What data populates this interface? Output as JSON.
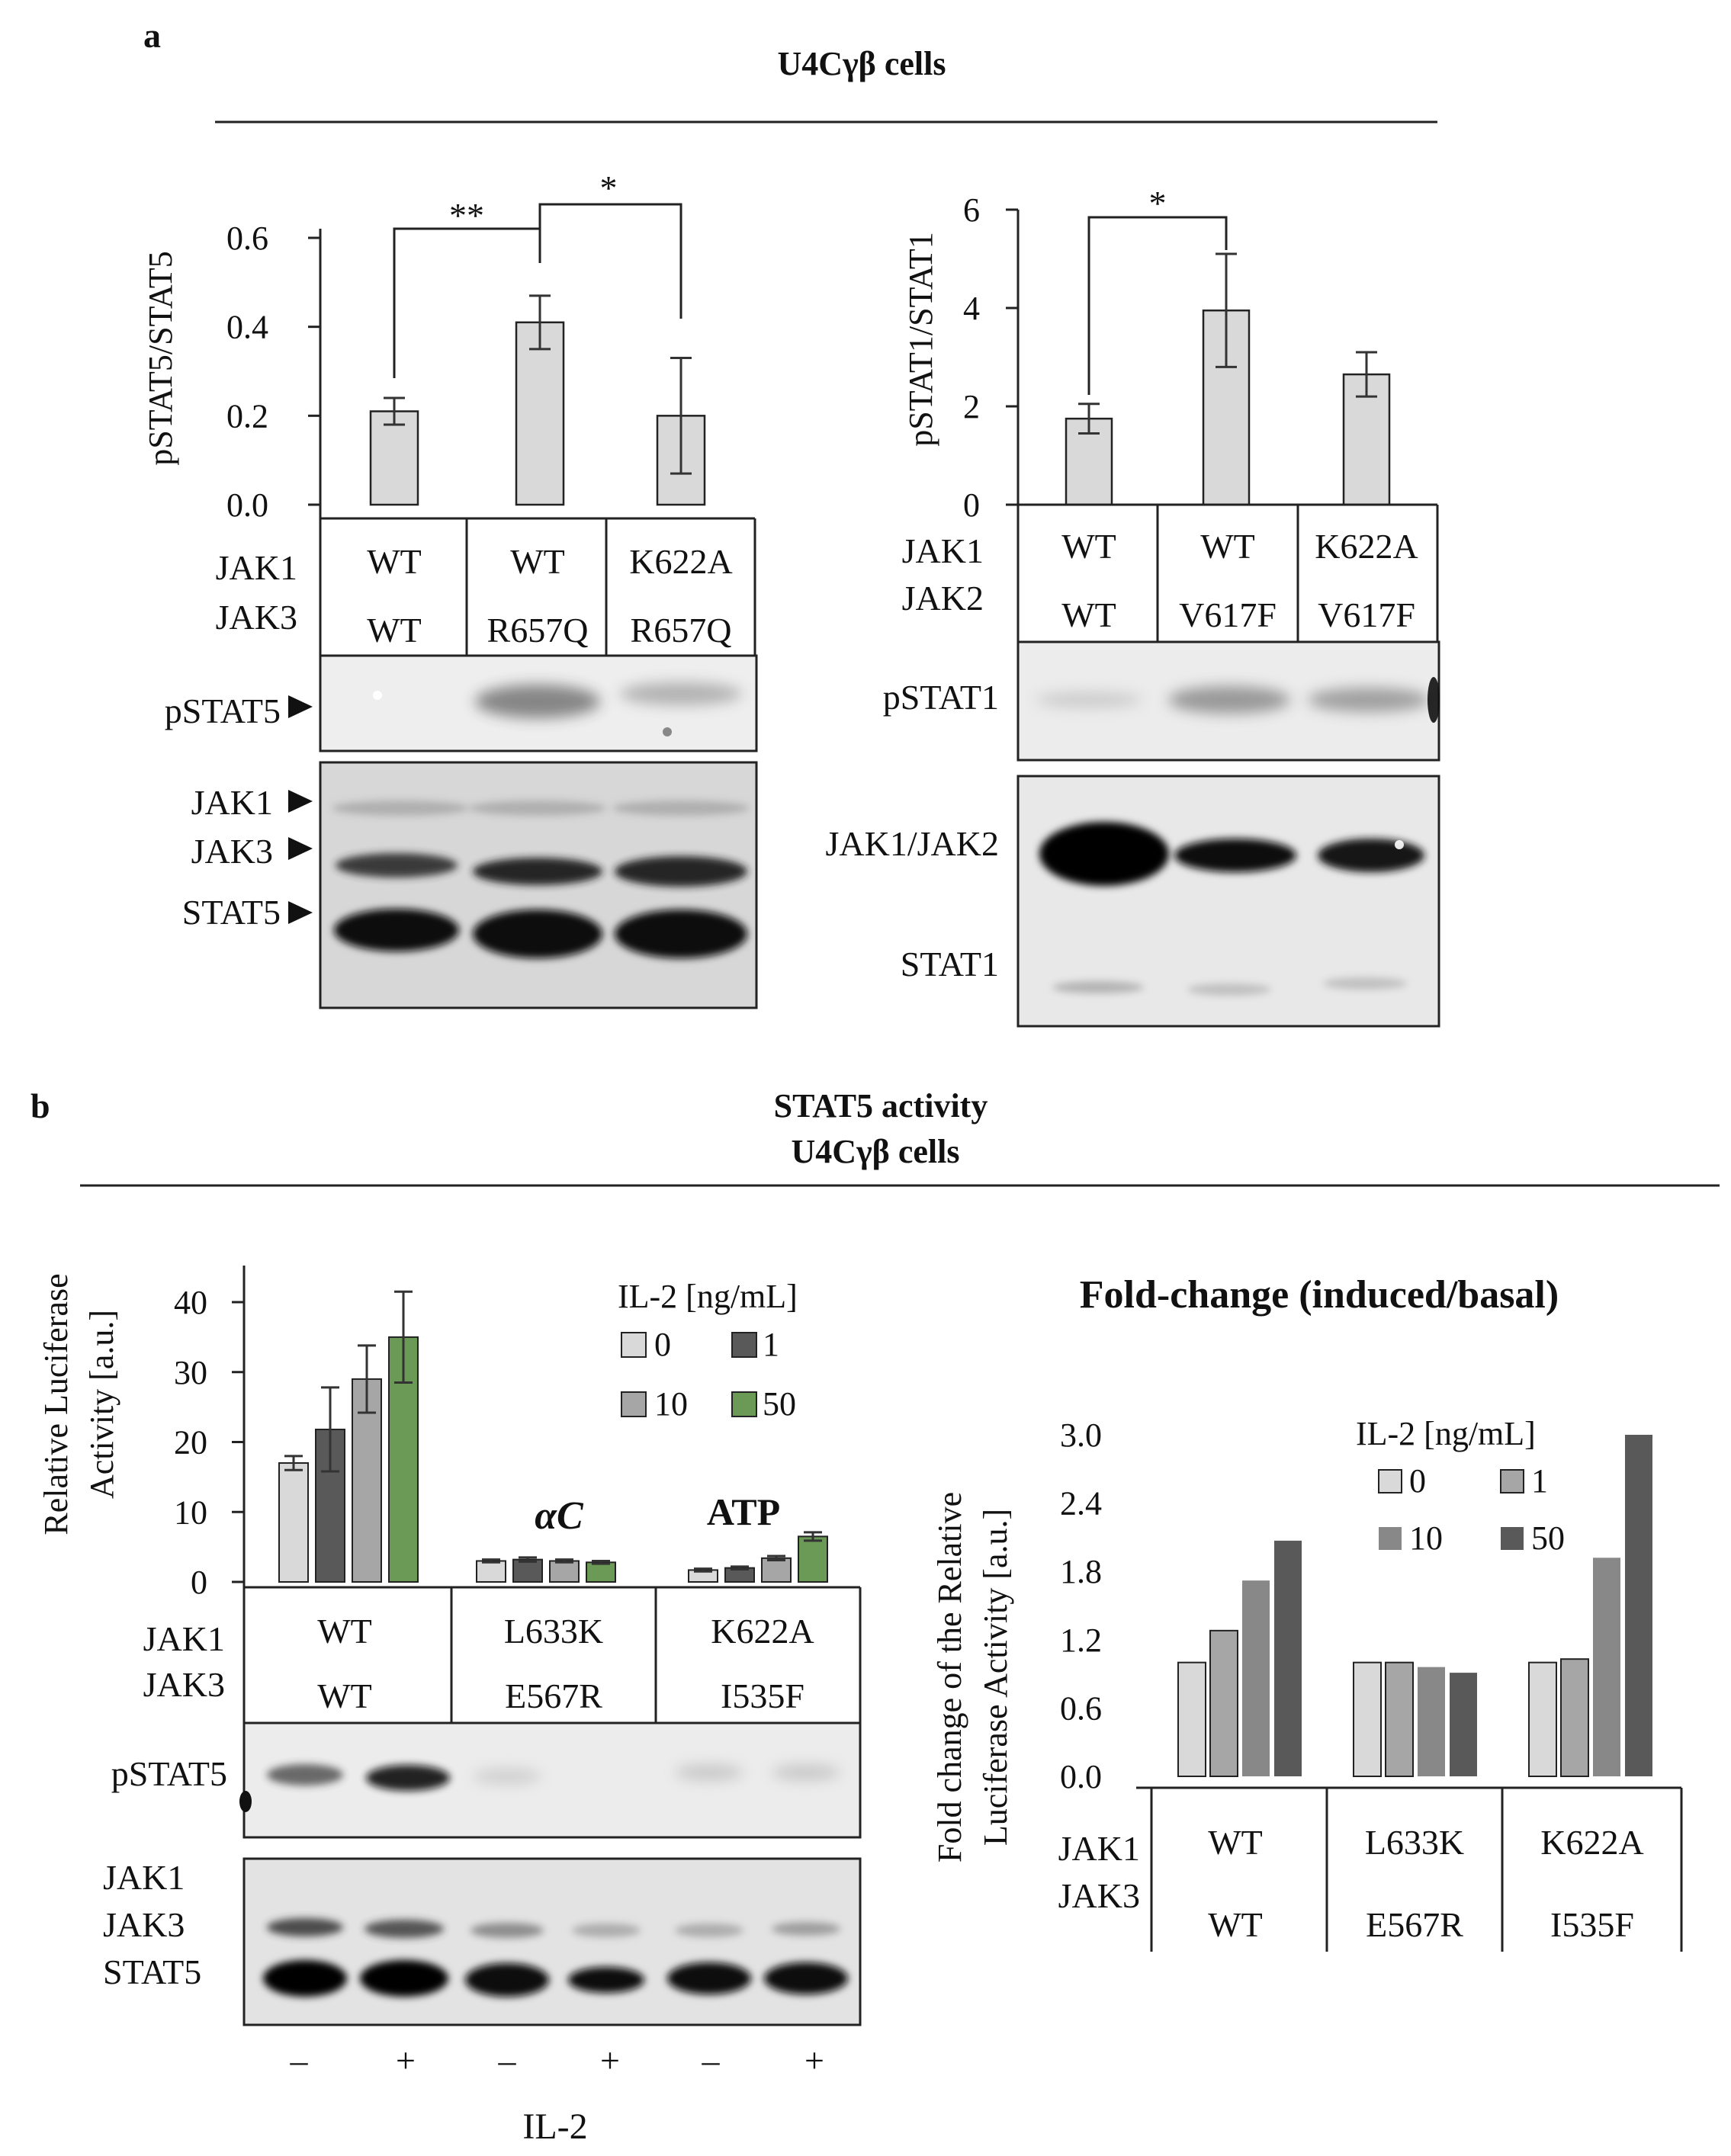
{
  "panel_a": {
    "letter": "a",
    "header": "U4Cγβ cells",
    "left": {
      "ylabel": "pSTAT5/STAT5",
      "ticks": [
        "0.0",
        "0.2",
        "0.4",
        "0.6"
      ],
      "sig1": "**",
      "sig2": "*",
      "row_labels": [
        "JAK1",
        "JAK3"
      ],
      "jak1": [
        "WT",
        "WT",
        "K622A"
      ],
      "jak3": [
        "WT",
        "R657Q",
        "R657Q"
      ],
      "blot1_label": "pSTAT5",
      "blot2_labels": [
        "JAK1",
        "JAK3",
        "STAT5"
      ]
    },
    "right": {
      "ylabel": "pSTAT1/STAT1",
      "ticks": [
        "0",
        "2",
        "4",
        "6"
      ],
      "sig1": "*",
      "row_labels": [
        "JAK1",
        "JAK2"
      ],
      "jak1": [
        "WT",
        "WT",
        "K622A"
      ],
      "jak2": [
        "WT",
        "V617F",
        "V617F"
      ],
      "blot1_label": "pSTAT1",
      "blot2_labels": [
        "JAK1/JAK2",
        "STAT1"
      ]
    }
  },
  "panel_b": {
    "letter": "b",
    "header_line1": "STAT5 activity",
    "header_line2": "U4Cγβ cells",
    "left": {
      "ylabel_line1": "Relative Luciferase",
      "ylabel_line2": "Activity [a.u.]",
      "ticks": [
        "0",
        "10",
        "20",
        "30",
        "40"
      ],
      "legend_title": "IL-2 [ng/mL]",
      "legend": [
        "0",
        "1",
        "10",
        "50"
      ],
      "group_annotations": [
        "αC",
        "ATP"
      ],
      "row_labels": [
        "JAK1",
        "JAK3"
      ],
      "jak1": [
        "WT",
        "L633K",
        "K622A"
      ],
      "jak3": [
        "WT",
        "E567R",
        "I535F"
      ],
      "blot1_label": "pSTAT5",
      "blot2_labels": [
        "JAK1",
        "JAK3",
        "STAT5"
      ],
      "il2_signs": [
        "–",
        "+",
        "–",
        "+",
        "–",
        "+"
      ],
      "il2_label": "IL-2"
    },
    "right": {
      "title": "Fold-change (induced/basal)",
      "ylabel_line1": "Fold change of the Relative",
      "ylabel_line2": "Luciferase Activity [a.u.]",
      "ticks": [
        "0.0",
        "0.6",
        "1.2",
        "1.8",
        "2.4",
        "3.0"
      ],
      "legend_title": "IL-2 [ng/mL]",
      "legend": [
        "0",
        "1",
        "10",
        "50"
      ],
      "row_labels": [
        "JAK1",
        "JAK3"
      ],
      "jak1": [
        "WT",
        "L633K",
        "K622A"
      ],
      "jak3": [
        "WT",
        "E567R",
        "I535F"
      ]
    }
  },
  "chart_data": [
    {
      "type": "bar",
      "ylabel": "pSTAT5/STAT5",
      "ylim": [
        0,
        0.6
      ],
      "categories": [
        "WT / WT",
        "WT / R657Q",
        "K622A / R657Q"
      ],
      "values": [
        0.21,
        0.41,
        0.2
      ],
      "errors": [
        0.03,
        0.06,
        0.13
      ],
      "annotations": [
        "**",
        "*"
      ],
      "color": "#d9d9d9"
    },
    {
      "type": "bar",
      "ylabel": "pSTAT1/STAT1",
      "ylim": [
        0,
        6
      ],
      "categories": [
        "WT / WT",
        "WT / V617F",
        "K622A / V617F"
      ],
      "values": [
        1.75,
        3.95,
        2.65
      ],
      "errors": [
        0.3,
        1.15,
        0.45
      ],
      "annotations": [
        "*"
      ],
      "color": "#d9d9d9"
    },
    {
      "type": "bar",
      "ylabel": "Relative Luciferase Activity [a.u.]",
      "ylim": [
        0,
        40
      ],
      "categories": [
        "WT / WT",
        "L633K / E567R",
        "K622A / I535F"
      ],
      "legend_title": "IL-2 [ng/mL]",
      "series": [
        {
          "name": "0",
          "values": [
            17,
            3.0,
            1.7
          ],
          "errors": [
            1,
            0.2,
            0.2
          ],
          "color": "#d9d9d9"
        },
        {
          "name": "1",
          "values": [
            21.8,
            3.2,
            2.0
          ],
          "errors": [
            6,
            0.3,
            0.2
          ],
          "color": "#595959"
        },
        {
          "name": "10",
          "values": [
            29,
            3.0,
            3.4
          ],
          "errors": [
            4.8,
            0.2,
            0.3
          ],
          "color": "#a6a6a6"
        },
        {
          "name": "50",
          "values": [
            35,
            2.8,
            6.5
          ],
          "errors": [
            6.5,
            0.2,
            0.6
          ],
          "color": "#6a9a55"
        }
      ]
    },
    {
      "type": "bar",
      "title": "Fold-change (induced/basal)",
      "ylabel": "Fold change of the Relative Luciferase Activity [a.u.]",
      "ylim": [
        0,
        3.0
      ],
      "categories": [
        "WT / WT",
        "L633K / E567R",
        "K622A / I535F"
      ],
      "legend_title": "IL-2 [ng/mL]",
      "series": [
        {
          "name": "0",
          "values": [
            1.0,
            1.0,
            1.0
          ],
          "color": "#d9d9d9"
        },
        {
          "name": "1",
          "values": [
            1.28,
            1.0,
            1.03
          ],
          "color": "#a6a6a6"
        },
        {
          "name": "10",
          "values": [
            1.72,
            0.96,
            1.92
          ],
          "color": "#888888"
        },
        {
          "name": "50",
          "values": [
            2.07,
            0.91,
            3.0
          ],
          "color": "#595959"
        }
      ]
    }
  ]
}
